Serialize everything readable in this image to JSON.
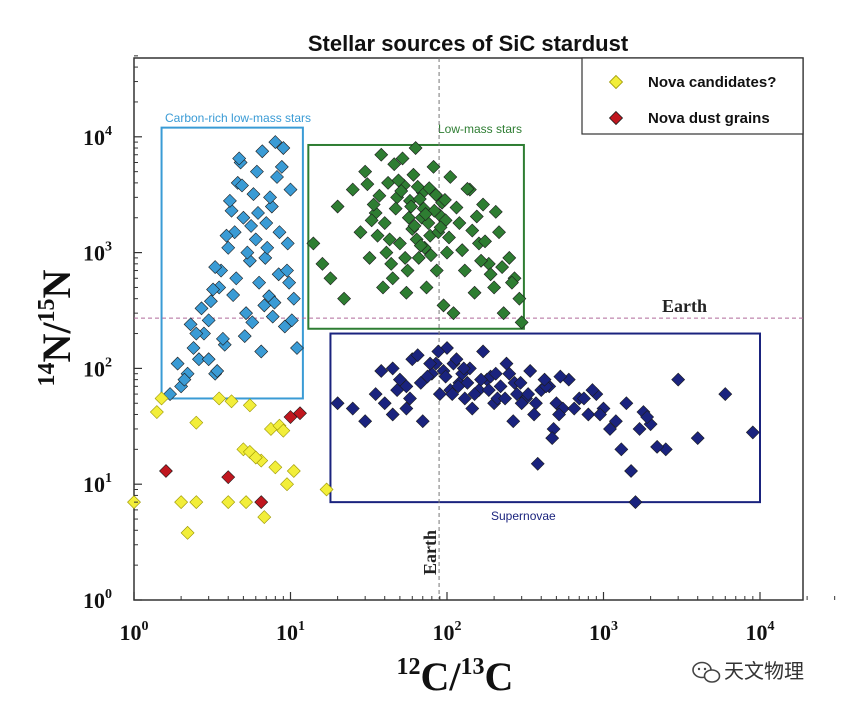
{
  "chart_data": {
    "type": "scatter",
    "title": "Stellar sources of SiC stardust",
    "xlabel": {
      "pre": "12",
      "main": "C/",
      "pre2": "13",
      "main2": "C"
    },
    "ylabel": {
      "pre": "14",
      "main": "N/",
      "pre2": "15",
      "main2": "N"
    },
    "x_scale": "log",
    "y_scale": "log",
    "xlim": [
      1,
      50000
    ],
    "ylim": [
      1,
      50000
    ],
    "x_ticks": [
      {
        "value": 1,
        "base": "10",
        "exp": "0"
      },
      {
        "value": 10,
        "base": "10",
        "exp": "1"
      },
      {
        "value": 100,
        "base": "10",
        "exp": "2"
      },
      {
        "value": 1000,
        "base": "10",
        "exp": "3"
      },
      {
        "value": 10000,
        "base": "10",
        "exp": "4"
      }
    ],
    "y_ticks": [
      {
        "value": 1,
        "base": "10",
        "exp": "0"
      },
      {
        "value": 10,
        "base": "10",
        "exp": "1"
      },
      {
        "value": 100,
        "base": "10",
        "exp": "2"
      },
      {
        "value": 1000,
        "base": "10",
        "exp": "3"
      },
      {
        "value": 10000,
        "base": "10",
        "exp": "4"
      }
    ],
    "earth": {
      "x": 89,
      "y": 272,
      "x_label": "Earth",
      "y_label": "Earth",
      "color": "#b06a9a"
    },
    "legend": {
      "position": "top-right",
      "entries": [
        {
          "label": "Nova candidates?",
          "color": "#f2ee3a"
        },
        {
          "label": "Nova dust grains",
          "color": "#c0171f"
        }
      ]
    },
    "regions": [
      {
        "label": "Carbon-rich low-mass stars",
        "x_range": [
          1.5,
          12
        ],
        "y_range": [
          55,
          12000
        ],
        "color": "#3a9bd5"
      },
      {
        "label": "Low-mass stars",
        "x_range": [
          13,
          310
        ],
        "y_range": [
          220,
          8500
        ],
        "color": "#2e7d32"
      },
      {
        "label": "Supernovae",
        "x_range": [
          18,
          10000
        ],
        "y_range": [
          7,
          200
        ],
        "color": "#1a237e"
      }
    ],
    "series": [
      {
        "name": "Nova candidates?",
        "color": "#f2ee3a",
        "x": [
          1.0,
          1.4,
          1.5,
          2.5,
          2.0,
          2.5,
          2.2,
          4.0,
          4.2,
          5.0,
          5.5,
          5.2,
          6.5,
          6.8,
          7.5,
          8.0,
          8.5,
          9.0,
          9.5,
          10.5,
          17,
          5.5,
          6.0,
          3.5
        ],
        "y": [
          7,
          42,
          55,
          34,
          7,
          7,
          3.8,
          7,
          52,
          20,
          19,
          7,
          16,
          5.2,
          30,
          14,
          32,
          29,
          10,
          13,
          9,
          48,
          17,
          55
        ]
      },
      {
        "name": "Nova dust grains",
        "color": "#c0171f",
        "x": [
          1.6,
          4.0,
          6.5,
          10.0,
          11.5
        ],
        "y": [
          13,
          11.5,
          7,
          38,
          41
        ]
      },
      {
        "name": "Carbon-rich low-mass stars",
        "color": "#3a9bd5",
        "x": [
          2.0,
          2.2,
          2.4,
          2.6,
          2.8,
          3.0,
          3.1,
          3.3,
          3.5,
          3.6,
          3.8,
          4.0,
          4.2,
          4.4,
          4.6,
          4.8,
          5.0,
          5.2,
          5.5,
          5.8,
          6.0,
          6.3,
          6.6,
          7.0,
          7.3,
          7.6,
          8.0,
          8.4,
          8.8,
          9.2,
          9.6,
          10.0,
          10.5,
          11.0,
          1.7,
          1.9,
          2.3,
          2.7,
          3.2,
          3.4,
          3.7,
          4.1,
          4.5,
          4.9,
          5.3,
          5.7,
          6.1,
          6.5,
          6.9,
          7.4,
          7.9,
          8.5,
          9.0,
          9.5,
          10.2,
          3.9,
          4.3,
          5.1,
          6.2,
          7.1,
          2.1,
          2.5,
          3.0,
          8.2,
          9.8,
          5.6,
          6.8,
          4.7,
          7.7,
          3.3
        ],
        "y": [
          70,
          90,
          150,
          120,
          200,
          260,
          380,
          90,
          500,
          700,
          160,
          1100,
          2300,
          1500,
          4000,
          6000,
          2000,
          300,
          850,
          3200,
          1300,
          550,
          7500,
          1800,
          420,
          2500,
          9000,
          650,
          5500,
          230,
          1200,
          3500,
          400,
          150,
          60,
          110,
          240,
          330,
          480,
          95,
          180,
          2800,
          600,
          3800,
          1000,
          250,
          5000,
          140,
          900,
          3000,
          370,
          1500,
          8000,
          700,
          260,
          1400,
          430,
          190,
          2200,
          1100,
          80,
          200,
          120,
          4500,
          550,
          1700,
          350,
          6500,
          280,
          750
        ]
      },
      {
        "name": "Low-mass stars",
        "color": "#2e7d32",
        "x": [
          14,
          16,
          18,
          20,
          22,
          25,
          28,
          30,
          32,
          35,
          38,
          40,
          42,
          45,
          48,
          50,
          52,
          55,
          58,
          60,
          63,
          66,
          70,
          74,
          78,
          82,
          86,
          90,
          95,
          100,
          105,
          110,
          120,
          130,
          140,
          150,
          160,
          170,
          185,
          200,
          215,
          230,
          250,
          270,
          290,
          300,
          33,
          37,
          43,
          47,
          53,
          57,
          62,
          67,
          72,
          77,
          83,
          88,
          93,
          98,
          44,
          49,
          54,
          59,
          64,
          69,
          46,
          51,
          56,
          61,
          41,
          39,
          65,
          71,
          76,
          36,
          34,
          31,
          68,
          73,
          79,
          85,
          91,
          97,
          103,
          115,
          125,
          135,
          145,
          155,
          165,
          175,
          190,
          205,
          225,
          260
        ],
        "y": [
          1200,
          800,
          600,
          2500,
          400,
          3500,
          1500,
          5000,
          900,
          2200,
          7000,
          1800,
          4000,
          600,
          3000,
          1200,
          6500,
          450,
          2800,
          1600,
          8000,
          900,
          3300,
          500,
          1400,
          5500,
          700,
          2100,
          350,
          1000,
          4500,
          300,
          1800,
          700,
          3500,
          450,
          1200,
          2600,
          800,
          500,
          1500,
          300,
          900,
          600,
          400,
          250,
          1900,
          3100,
          1300,
          2400,
          3800,
          2000,
          1700,
          2900,
          1100,
          3600,
          2300,
          1500,
          2700,
          1900,
          800,
          4200,
          900,
          2500,
          1300,
          2000,
          5800,
          3400,
          700,
          4700,
          1000,
          500,
          3700,
          2400,
          1800,
          1400,
          2600,
          3900,
          1150,
          2150,
          950,
          3150,
          1650,
          2850,
          1350,
          2450,
          1050,
          3550,
          1550,
          2050,
          850,
          1250,
          650,
          2250,
          750,
          550
        ]
      },
      {
        "name": "Supernovae",
        "color": "#1a237e",
        "x": [
          20,
          25,
          30,
          35,
          40,
          45,
          50,
          55,
          60,
          70,
          80,
          90,
          100,
          110,
          120,
          130,
          140,
          160,
          180,
          200,
          220,
          250,
          280,
          320,
          360,
          400,
          450,
          500,
          550,
          600,
          700,
          800,
          900,
          1000,
          1200,
          1400,
          1600,
          1800,
          2000,
          2500,
          3000,
          4000,
          6000,
          9000,
          45,
          55,
          65,
          75,
          85,
          95,
          105,
          115,
          125,
          135,
          150,
          170,
          190,
          210,
          240,
          270,
          300,
          340,
          380,
          430,
          480,
          530,
          650,
          750,
          850,
          950,
          1100,
          1300,
          1500,
          1700,
          1900,
          2200,
          38,
          48,
          58,
          68,
          78,
          88,
          98,
          108,
          118,
          128,
          145,
          165,
          185,
          205,
          235,
          265,
          295,
          330,
          370,
          420,
          470,
          520
        ],
        "y": [
          50,
          45,
          35,
          60,
          50,
          40,
          80,
          45,
          120,
          35,
          90,
          60,
          150,
          110,
          75,
          55,
          100,
          65,
          80,
          50,
          70,
          90,
          60,
          55,
          40,
          65,
          70,
          50,
          45,
          80,
          55,
          40,
          60,
          45,
          35,
          50,
          7,
          42,
          33,
          20,
          80,
          25,
          60,
          28,
          100,
          70,
          130,
          85,
          110,
          95,
          65,
          120,
          90,
          75,
          60,
          140,
          85,
          55,
          110,
          75,
          50,
          95,
          15,
          70,
          30,
          85,
          45,
          55,
          65,
          40,
          30,
          20,
          13,
          30,
          38,
          21,
          95,
          65,
          55,
          75,
          110,
          140,
          85,
          60,
          70,
          100,
          45,
          80,
          65,
          90,
          55,
          35,
          75,
          60,
          50,
          80,
          25,
          40
        ]
      }
    ]
  },
  "watermark": {
    "icon": "wechat-icon",
    "text": "天文物理"
  }
}
